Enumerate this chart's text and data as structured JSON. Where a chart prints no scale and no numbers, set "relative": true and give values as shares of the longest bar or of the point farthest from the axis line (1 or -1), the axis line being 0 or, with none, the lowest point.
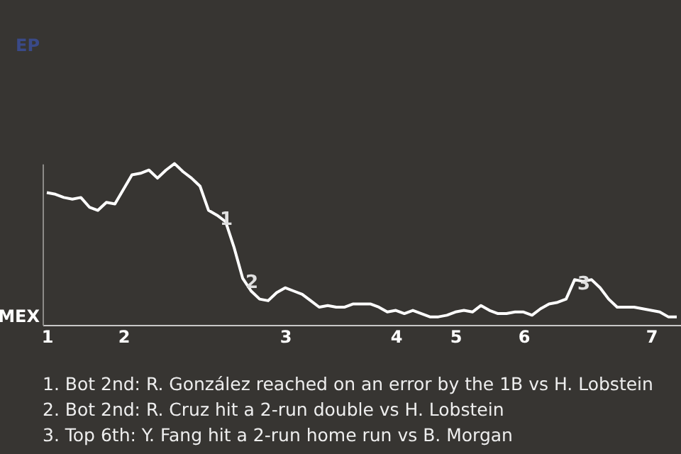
{
  "chart_data": {
    "type": "line",
    "relative": true,
    "categories": [
      "1",
      null,
      null,
      null,
      null,
      null,
      null,
      null,
      null,
      "2",
      null,
      null,
      null,
      null,
      null,
      null,
      null,
      null,
      null,
      null,
      null,
      null,
      null,
      null,
      null,
      null,
      null,
      null,
      "3",
      null,
      null,
      null,
      null,
      null,
      null,
      null,
      null,
      null,
      null,
      null,
      null,
      "4",
      null,
      null,
      null,
      null,
      null,
      null,
      "5",
      null,
      null,
      null,
      null,
      null,
      null,
      null,
      "6",
      null,
      null,
      null,
      null,
      null,
      null,
      null,
      null,
      null,
      null,
      null,
      null,
      null,
      null,
      "7",
      null,
      null,
      null
    ],
    "series": [
      {
        "color": "#ffffff",
        "values": [
          0.82,
          0.81,
          0.79,
          0.78,
          0.79,
          0.73,
          0.71,
          0.76,
          0.75,
          0.84,
          0.93,
          0.94,
          0.96,
          0.91,
          0.96,
          1,
          0.95,
          0.91,
          0.86,
          0.71,
          0.68,
          0.64,
          0.48,
          0.29,
          0.21,
          0.16,
          0.15,
          0.2,
          0.23,
          0.21,
          0.19,
          0.15,
          0.11,
          0.12,
          0.11,
          0.11,
          0.13,
          0.13,
          0.13,
          0.11,
          0.08,
          0.09,
          0.07,
          0.09,
          0.07,
          0.05,
          0.05,
          0.06,
          0.08,
          0.09,
          0.08,
          0.12,
          0.09,
          0.07,
          0.07,
          0.08,
          0.08,
          0.06,
          0.1,
          0.13,
          0.14,
          0.16,
          0.28,
          0.27,
          0.28,
          0.23,
          0.16,
          0.11,
          0.11,
          0.11,
          0.1,
          0.09,
          0.08,
          0.05,
          0.05
        ]
      }
    ],
    "line_style": "solid",
    "annotations": [
      "EP",
      "MEX",
      {
        "text": "1",
        "y": 0.68
      },
      {
        "text": "2",
        "y": 0.29
      },
      {
        "text": "3",
        "y": 0.28
      },
      "1. Bot 2nd: R. González reached on an error by the 1B vs H. Lobstein",
      "2. Bot 2nd: R. Cruz hit a 2-run double vs H. Lobstein",
      "3. Top 6th: Y. Fang hit a 2-run home run vs B. Morgan"
    ]
  }
}
